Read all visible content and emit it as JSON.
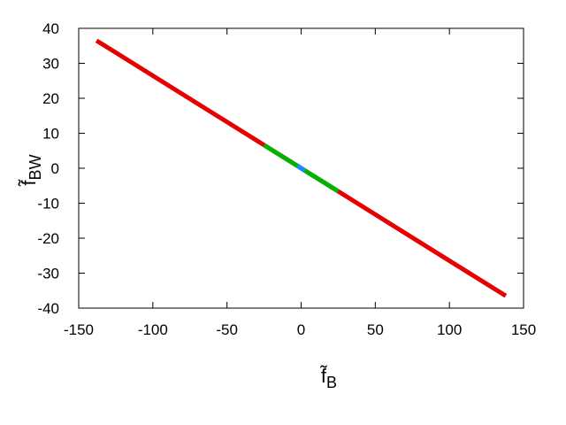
{
  "chart_data": {
    "type": "line",
    "xlabel": [
      "f̃",
      "B"
    ],
    "ylabel": [
      "f̃",
      "BW"
    ],
    "xlim": [
      -150,
      150
    ],
    "xticks": [
      -150,
      -100,
      -50,
      0,
      50,
      100,
      150
    ],
    "ylim": [
      -40,
      40
    ],
    "yticks": [
      -40,
      -30,
      -20,
      -10,
      0,
      10,
      20,
      30,
      40
    ],
    "grid": false,
    "series": [
      {
        "color": "#e60000",
        "x": [
          -138,
          138
        ],
        "values": [
          36.5,
          -36.5
        ]
      },
      {
        "color": "#00b300",
        "x": [
          -25,
          25
        ],
        "values": [
          6.6,
          -6.6
        ]
      },
      {
        "color": "#1a8cff",
        "x": [
          -2.5,
          2.5
        ],
        "values": [
          0.7,
          -0.7
        ]
      }
    ]
  }
}
